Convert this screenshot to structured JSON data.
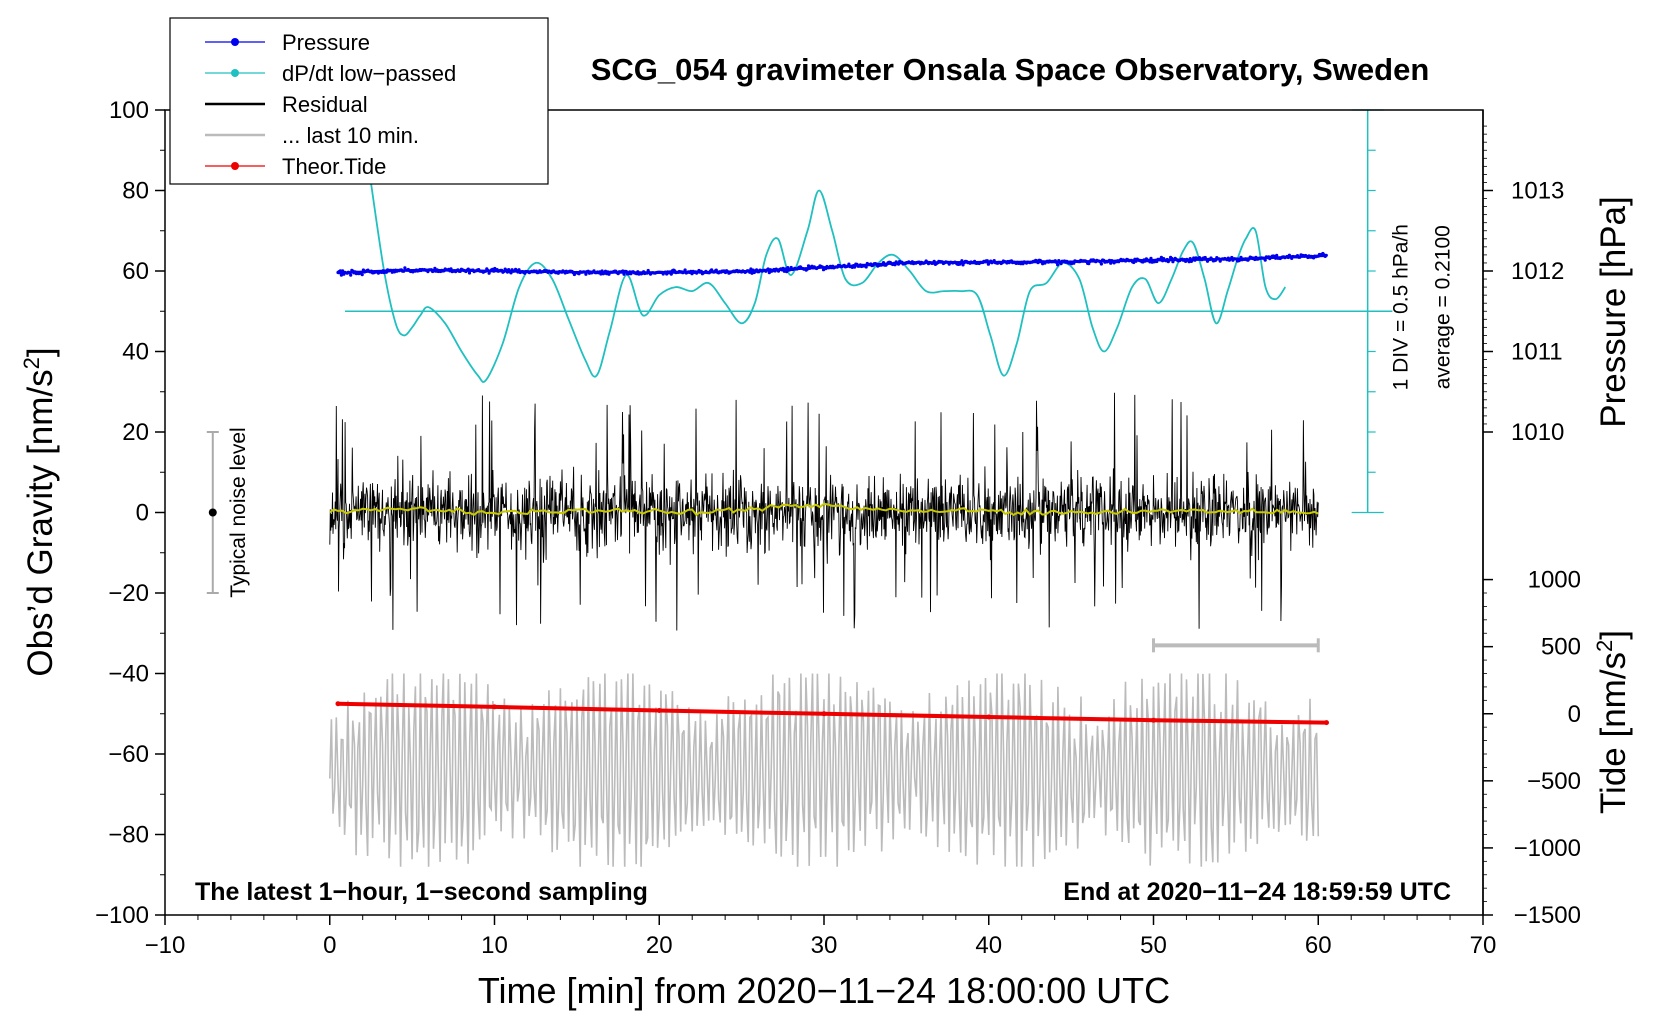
{
  "chart_data": {
    "type": "line",
    "title": "SCG_054 gravimeter Onsala Space Observatory, Sweden",
    "xlabel": "Time [min] from 2020−11−24 18:00:00 UTC",
    "ylabel_left_main": "Obs’d Gravity [nm/s",
    "ylabel_left_sup": "2",
    "ylabel_left_close": "]",
    "ylabel_right_pressure": "Pressure [hPa]",
    "ylabel_right_tide_main": "Tide [nm/s",
    "ylabel_right_tide_sup": "2",
    "ylabel_right_tide_close": "]",
    "xlim": [
      -10,
      70
    ],
    "ylim": [
      -100,
      100
    ],
    "x_ticks": [
      "−10",
      "0",
      "10",
      "20",
      "30",
      "40",
      "50",
      "60",
      "70"
    ],
    "y_ticks": [
      "100",
      "80",
      "60",
      "40",
      "20",
      "0",
      "−20",
      "−40",
      "−60",
      "−80",
      "−100"
    ],
    "pressure_axis": {
      "ticks": [
        "1013",
        "1012",
        "1011",
        "1010"
      ],
      "tick_values": [
        1013,
        1012,
        1011,
        1010
      ]
    },
    "tide_axis": {
      "ticks": [
        "1000",
        "500",
        "0",
        "−500",
        "−1000",
        "−1500"
      ],
      "tick_values": [
        1000,
        500,
        0,
        -500,
        -1000,
        -1500
      ]
    },
    "legend": {
      "position": "top-left",
      "entries": [
        {
          "label": "Pressure",
          "color": "#0000ee",
          "marker": "dot"
        },
        {
          "label": "dP/dt low−passed",
          "color": "#20c0c0",
          "marker": "dot"
        },
        {
          "label": "Residual",
          "color": "#000000",
          "marker": "line"
        },
        {
          "label": "... last 10 min.",
          "color": "#bbbbbb",
          "marker": "line"
        },
        {
          "label": "Theor.Tide",
          "color": "#ee0000",
          "marker": "dot"
        }
      ]
    },
    "annotations": {
      "footer_left": "The latest 1−hour, 1−second sampling",
      "footer_right": "End at 2020−11−24 18:59:59 UTC",
      "noise_label": "Typical noise level",
      "noise_bar_range": [
        -20,
        20
      ],
      "dpdt_scale": "1 DIV = 0.5 hPa/h",
      "dpdt_average": "average = 0.2100",
      "dpdt_baseline_y": 50,
      "last10_bar_x": [
        50,
        60
      ]
    },
    "series": [
      {
        "name": "Pressure",
        "color": "#0000ee",
        "x": [
          0.5,
          5,
          10,
          15,
          20,
          25,
          30,
          35,
          40,
          45,
          50,
          55,
          60.5
        ],
        "y": [
          59.5,
          60.2,
          60.0,
          59.7,
          59.6,
          59.9,
          60.9,
          62.0,
          62.2,
          62.3,
          62.7,
          63.0,
          63.8
        ]
      },
      {
        "name": "dP/dt low-passed",
        "color": "#20c0c0",
        "x": [
          2.5,
          3.3,
          4.0,
          4.5,
          5.0,
          5.5,
          6.0,
          7.0,
          8.0,
          9.0,
          9.5,
          10.5,
          11.5,
          12.5,
          13.5,
          14.5,
          15.5,
          16.2,
          17.0,
          18.0,
          19.0,
          20.0,
          21.0,
          22.0,
          23.0,
          24.0,
          25.0,
          25.8,
          26.5,
          27.2,
          28.0,
          29.0,
          29.7,
          30.5,
          31.3,
          32.3,
          33.3,
          34.2,
          35.2,
          36.2,
          37.3,
          38.3,
          39.3,
          40.1,
          40.9,
          41.7,
          42.5,
          43.5,
          44.5,
          45.5,
          46.3,
          47.0,
          47.8,
          48.7,
          49.5,
          50.3,
          51.1,
          51.8,
          52.4,
          53.1,
          53.8,
          54.5,
          55.1,
          55.6,
          56.2,
          56.8,
          57.4,
          58.0
        ],
        "y": [
          82,
          60,
          47,
          44,
          46,
          49,
          51,
          47,
          40,
          34,
          33,
          42,
          56,
          62,
          58,
          48,
          38,
          34,
          45,
          59,
          49,
          54,
          56,
          55,
          57,
          52,
          47,
          52,
          64,
          68,
          59,
          70,
          80,
          70,
          58,
          57,
          62,
          64,
          60,
          55,
          55,
          55,
          54,
          44,
          34,
          42,
          55,
          57,
          62,
          58,
          46,
          40,
          46,
          56,
          58,
          52,
          58,
          65,
          67,
          58,
          47,
          55,
          63,
          68,
          70,
          56,
          53,
          56
        ]
      },
      {
        "name": "Residual",
        "color": "#000000",
        "x": [
          0,
          60
        ],
        "y_range": [
          -31,
          33
        ],
        "smoothed_color": "#c8c800",
        "smoothed_y": [
          0,
          1,
          0,
          0,
          0.5,
          0,
          1,
          2,
          0.5,
          0.5,
          0,
          0,
          0.5,
          0.2,
          0
        ]
      },
      {
        "name": "... last 10 min.",
        "color": "#bbbbbb",
        "x": [
          0,
          60
        ],
        "y_range": [
          -88,
          -40
        ]
      },
      {
        "name": "Theor.Tide",
        "color": "#ee0000",
        "x": [
          0.5,
          10,
          20,
          30,
          40,
          50,
          60.5
        ],
        "y": [
          -47.5,
          -48.3,
          -49.2,
          -50.0,
          -50.8,
          -51.6,
          -52.2
        ]
      }
    ]
  }
}
